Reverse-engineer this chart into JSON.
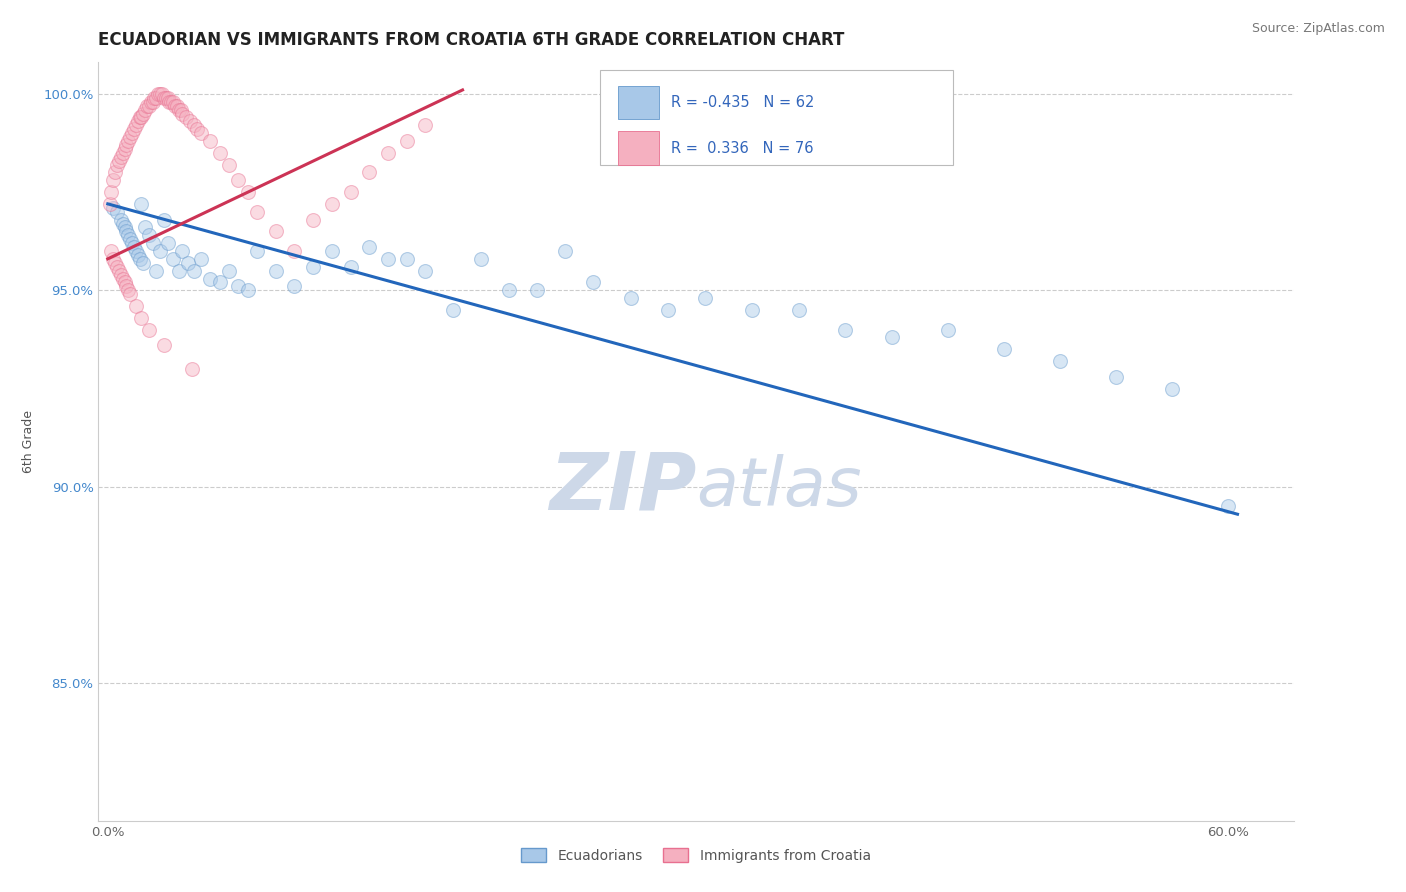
{
  "title": "ECUADORIAN VS IMMIGRANTS FROM CROATIA 6TH GRADE CORRELATION CHART",
  "source": "Source: ZipAtlas.com",
  "ylabel": "6th Grade",
  "watermark": "ZIPatlas",
  "r_blue": -0.435,
  "n_blue": 62,
  "r_pink": 0.336,
  "n_pink": 76,
  "xlim": [
    -0.005,
    0.635
  ],
  "ylim": [
    0.815,
    1.008
  ],
  "xticks": [
    0.0,
    0.1,
    0.2,
    0.3,
    0.4,
    0.5,
    0.6
  ],
  "xticklabels": [
    "0.0%",
    "",
    "",
    "",
    "",
    "",
    "60.0%"
  ],
  "yticks": [
    0.85,
    0.9,
    0.95,
    1.0
  ],
  "yticklabels": [
    "85.0%",
    "90.0%",
    "95.0%",
    "100.0%"
  ],
  "blue_scatter_x": [
    0.003,
    0.005,
    0.007,
    0.008,
    0.009,
    0.01,
    0.011,
    0.012,
    0.013,
    0.014,
    0.015,
    0.016,
    0.017,
    0.018,
    0.019,
    0.02,
    0.022,
    0.024,
    0.026,
    0.028,
    0.03,
    0.032,
    0.035,
    0.038,
    0.04,
    0.043,
    0.046,
    0.05,
    0.055,
    0.06,
    0.065,
    0.07,
    0.075,
    0.08,
    0.09,
    0.1,
    0.11,
    0.12,
    0.13,
    0.14,
    0.15,
    0.16,
    0.17,
    0.185,
    0.2,
    0.215,
    0.23,
    0.245,
    0.26,
    0.28,
    0.3,
    0.32,
    0.345,
    0.37,
    0.395,
    0.42,
    0.45,
    0.48,
    0.51,
    0.54,
    0.57,
    0.6
  ],
  "blue_scatter_y": [
    0.971,
    0.97,
    0.968,
    0.967,
    0.966,
    0.965,
    0.964,
    0.963,
    0.962,
    0.961,
    0.96,
    0.959,
    0.958,
    0.972,
    0.957,
    0.966,
    0.964,
    0.962,
    0.955,
    0.96,
    0.968,
    0.962,
    0.958,
    0.955,
    0.96,
    0.957,
    0.955,
    0.958,
    0.953,
    0.952,
    0.955,
    0.951,
    0.95,
    0.96,
    0.955,
    0.951,
    0.956,
    0.96,
    0.956,
    0.961,
    0.958,
    0.958,
    0.955,
    0.945,
    0.958,
    0.95,
    0.95,
    0.96,
    0.952,
    0.948,
    0.945,
    0.948,
    0.945,
    0.945,
    0.94,
    0.938,
    0.94,
    0.935,
    0.932,
    0.928,
    0.925,
    0.895
  ],
  "pink_scatter_x": [
    0.001,
    0.002,
    0.003,
    0.004,
    0.005,
    0.006,
    0.007,
    0.008,
    0.009,
    0.01,
    0.011,
    0.012,
    0.013,
    0.014,
    0.015,
    0.016,
    0.017,
    0.018,
    0.019,
    0.02,
    0.021,
    0.022,
    0.023,
    0.024,
    0.025,
    0.026,
    0.027,
    0.028,
    0.029,
    0.03,
    0.031,
    0.032,
    0.033,
    0.034,
    0.035,
    0.036,
    0.037,
    0.038,
    0.039,
    0.04,
    0.042,
    0.044,
    0.046,
    0.048,
    0.05,
    0.055,
    0.06,
    0.065,
    0.07,
    0.075,
    0.08,
    0.09,
    0.1,
    0.11,
    0.12,
    0.13,
    0.14,
    0.15,
    0.16,
    0.17,
    0.002,
    0.003,
    0.004,
    0.005,
    0.006,
    0.007,
    0.008,
    0.009,
    0.01,
    0.011,
    0.012,
    0.015,
    0.018,
    0.022,
    0.03,
    0.045
  ],
  "pink_scatter_y": [
    0.972,
    0.975,
    0.978,
    0.98,
    0.982,
    0.983,
    0.984,
    0.985,
    0.986,
    0.987,
    0.988,
    0.989,
    0.99,
    0.991,
    0.992,
    0.993,
    0.994,
    0.994,
    0.995,
    0.996,
    0.997,
    0.997,
    0.998,
    0.998,
    0.999,
    0.999,
    1.0,
    1.0,
    1.0,
    0.999,
    0.999,
    0.999,
    0.998,
    0.998,
    0.998,
    0.997,
    0.997,
    0.996,
    0.996,
    0.995,
    0.994,
    0.993,
    0.992,
    0.991,
    0.99,
    0.988,
    0.985,
    0.982,
    0.978,
    0.975,
    0.97,
    0.965,
    0.96,
    0.968,
    0.972,
    0.975,
    0.98,
    0.985,
    0.988,
    0.992,
    0.96,
    0.958,
    0.957,
    0.956,
    0.955,
    0.954,
    0.953,
    0.952,
    0.951,
    0.95,
    0.949,
    0.946,
    0.943,
    0.94,
    0.936,
    0.93
  ],
  "blue_line_x": [
    0.0,
    0.605
  ],
  "blue_line_y": [
    0.972,
    0.893
  ],
  "pink_line_x": [
    0.0,
    0.19
  ],
  "pink_line_y": [
    0.958,
    1.001
  ],
  "dot_size": 100,
  "dot_alpha": 0.45,
  "blue_fill": "#a8c8e8",
  "blue_edge": "#6699cc",
  "pink_fill": "#f5b0c0",
  "pink_edge": "#e87090",
  "blue_line_color": "#2266bb",
  "pink_line_color": "#cc3355",
  "grid_color": "#cccccc",
  "tick_color_y": "#4488cc",
  "tick_color_x": "#666666",
  "ylabel_color": "#555555",
  "title_color": "#222222",
  "watermark_color": "#cdd8e8",
  "watermark_fontsize": 58,
  "title_fontsize": 12,
  "source_fontsize": 9,
  "tick_fontsize": 9.5,
  "ylabel_fontsize": 9
}
